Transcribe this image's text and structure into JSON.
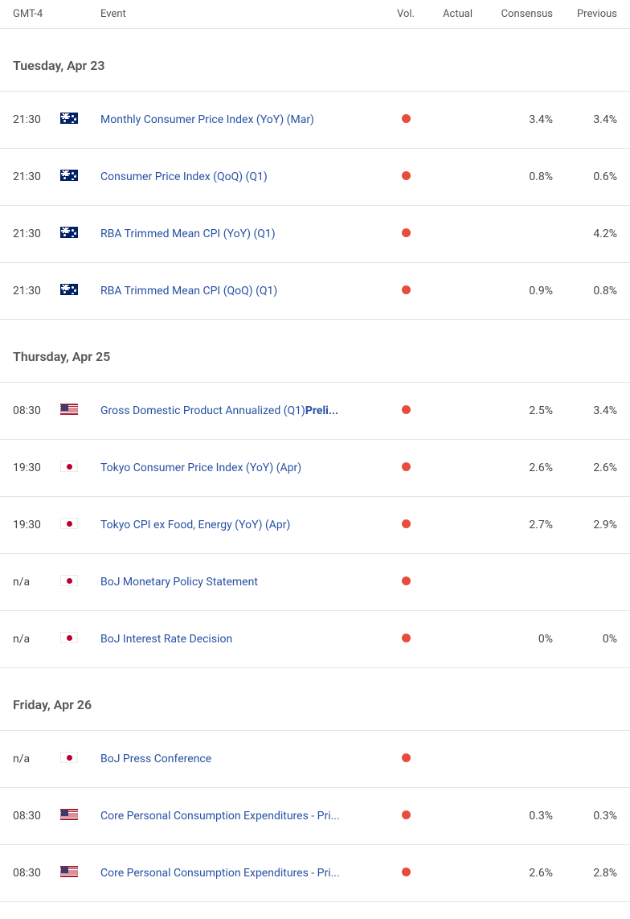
{
  "header": {
    "time": "GMT-4",
    "event": "Event",
    "vol": "Vol.",
    "actual": "Actual",
    "consensus": "Consensus",
    "previous": "Previous"
  },
  "colors": {
    "vol_dot": "#e74c3c",
    "event_link": "#2851a3",
    "border": "#e5e5e5",
    "text": "#444",
    "header_text": "#555"
  },
  "days": [
    {
      "label": "Tuesday, Apr 23",
      "rows": [
        {
          "time": "21:30",
          "flag": "au",
          "event": "Monthly Consumer Price Index (YoY) (Mar)",
          "event_bold": "",
          "vol": "high",
          "actual": "",
          "consensus": "3.4%",
          "previous": "3.4%"
        },
        {
          "time": "21:30",
          "flag": "au",
          "event": "Consumer Price Index (QoQ) (Q1)",
          "event_bold": "",
          "vol": "high",
          "actual": "",
          "consensus": "0.8%",
          "previous": "0.6%"
        },
        {
          "time": "21:30",
          "flag": "au",
          "event": "RBA Trimmed Mean CPI (YoY) (Q1)",
          "event_bold": "",
          "vol": "high",
          "actual": "",
          "consensus": "",
          "previous": "4.2%"
        },
        {
          "time": "21:30",
          "flag": "au",
          "event": "RBA Trimmed Mean CPI (QoQ) (Q1)",
          "event_bold": "",
          "vol": "high",
          "actual": "",
          "consensus": "0.9%",
          "previous": "0.8%"
        }
      ]
    },
    {
      "label": "Thursday, Apr 25",
      "rows": [
        {
          "time": "08:30",
          "flag": "us",
          "event": "Gross Domestic Product Annualized (Q1)",
          "event_bold": "Preli...",
          "vol": "high",
          "actual": "",
          "consensus": "2.5%",
          "previous": "3.4%"
        },
        {
          "time": "19:30",
          "flag": "jp",
          "event": "Tokyo Consumer Price Index (YoY) (Apr)",
          "event_bold": "",
          "vol": "high",
          "actual": "",
          "consensus": "2.6%",
          "previous": "2.6%"
        },
        {
          "time": "19:30",
          "flag": "jp",
          "event": "Tokyo CPI ex Food, Energy (YoY) (Apr)",
          "event_bold": "",
          "vol": "high",
          "actual": "",
          "consensus": "2.7%",
          "previous": "2.9%"
        },
        {
          "time": "n/a",
          "flag": "jp",
          "event": "BoJ Monetary Policy Statement",
          "event_bold": "",
          "vol": "high",
          "actual": "",
          "consensus": "",
          "previous": ""
        },
        {
          "time": "n/a",
          "flag": "jp",
          "event": "BoJ Interest Rate Decision",
          "event_bold": "",
          "vol": "high",
          "actual": "",
          "consensus": "0%",
          "previous": "0%"
        }
      ]
    },
    {
      "label": "Friday, Apr 26",
      "rows": [
        {
          "time": "n/a",
          "flag": "jp",
          "event": "BoJ Press Conference",
          "event_bold": "",
          "vol": "high",
          "actual": "",
          "consensus": "",
          "previous": ""
        },
        {
          "time": "08:30",
          "flag": "us",
          "event": "Core Personal Consumption Expenditures - Pri...",
          "event_bold": "",
          "vol": "high",
          "actual": "",
          "consensus": "0.3%",
          "previous": "0.3%"
        },
        {
          "time": "08:30",
          "flag": "us",
          "event": "Core Personal Consumption Expenditures - Pri...",
          "event_bold": "",
          "vol": "high",
          "actual": "",
          "consensus": "2.6%",
          "previous": "2.8%"
        }
      ]
    }
  ]
}
